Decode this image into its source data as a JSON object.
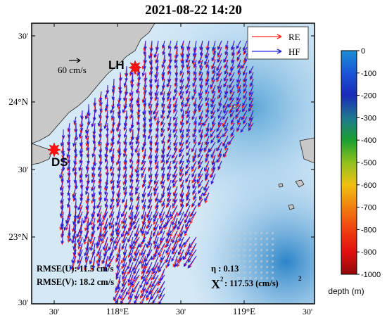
{
  "title": "2021-08-22 14:20",
  "legend": {
    "re_label": "RE",
    "hf_label": "HF",
    "re_color": "#ff2020",
    "hf_color": "#2020e0"
  },
  "scale": {
    "label": "60 cm/s"
  },
  "stations": [
    {
      "name": "LH"
    },
    {
      "name": "DS"
    }
  ],
  "lat_ticks": [
    {
      "label": "30'"
    },
    {
      "label": "24°N"
    },
    {
      "label": "30'"
    },
    {
      "label": "23°N"
    },
    {
      "label": "30'"
    }
  ],
  "lon_ticks": [
    {
      "label": "30'"
    },
    {
      "label": "118°E"
    },
    {
      "label": "30'"
    },
    {
      "label": "119°E"
    },
    {
      "label": "30'"
    }
  ],
  "stats": {
    "rmse_u": "RMSE(U): 11.5 cm/s",
    "rmse_v": "RMSE(V): 18.2 cm/s",
    "eta": "η : 0.13",
    "chi_sym": "X",
    "chi_sup": "2",
    "chi_val": ": 117.53  (cm/s)",
    "chi_sup2": "2"
  },
  "colorbar": {
    "title": "depth (m)",
    "ticks": [
      "0",
      "-100",
      "-200",
      "-300",
      "-400",
      "-500",
      "-600",
      "-700",
      "-800",
      "-900",
      "-1000"
    ],
    "colors": [
      "#1a8fd4",
      "#1a55d8",
      "#1a2ab8",
      "#1f7890",
      "#1aa030",
      "#8fc020",
      "#f0c010",
      "#f08010",
      "#f04010",
      "#e01010",
      "#900808"
    ]
  }
}
